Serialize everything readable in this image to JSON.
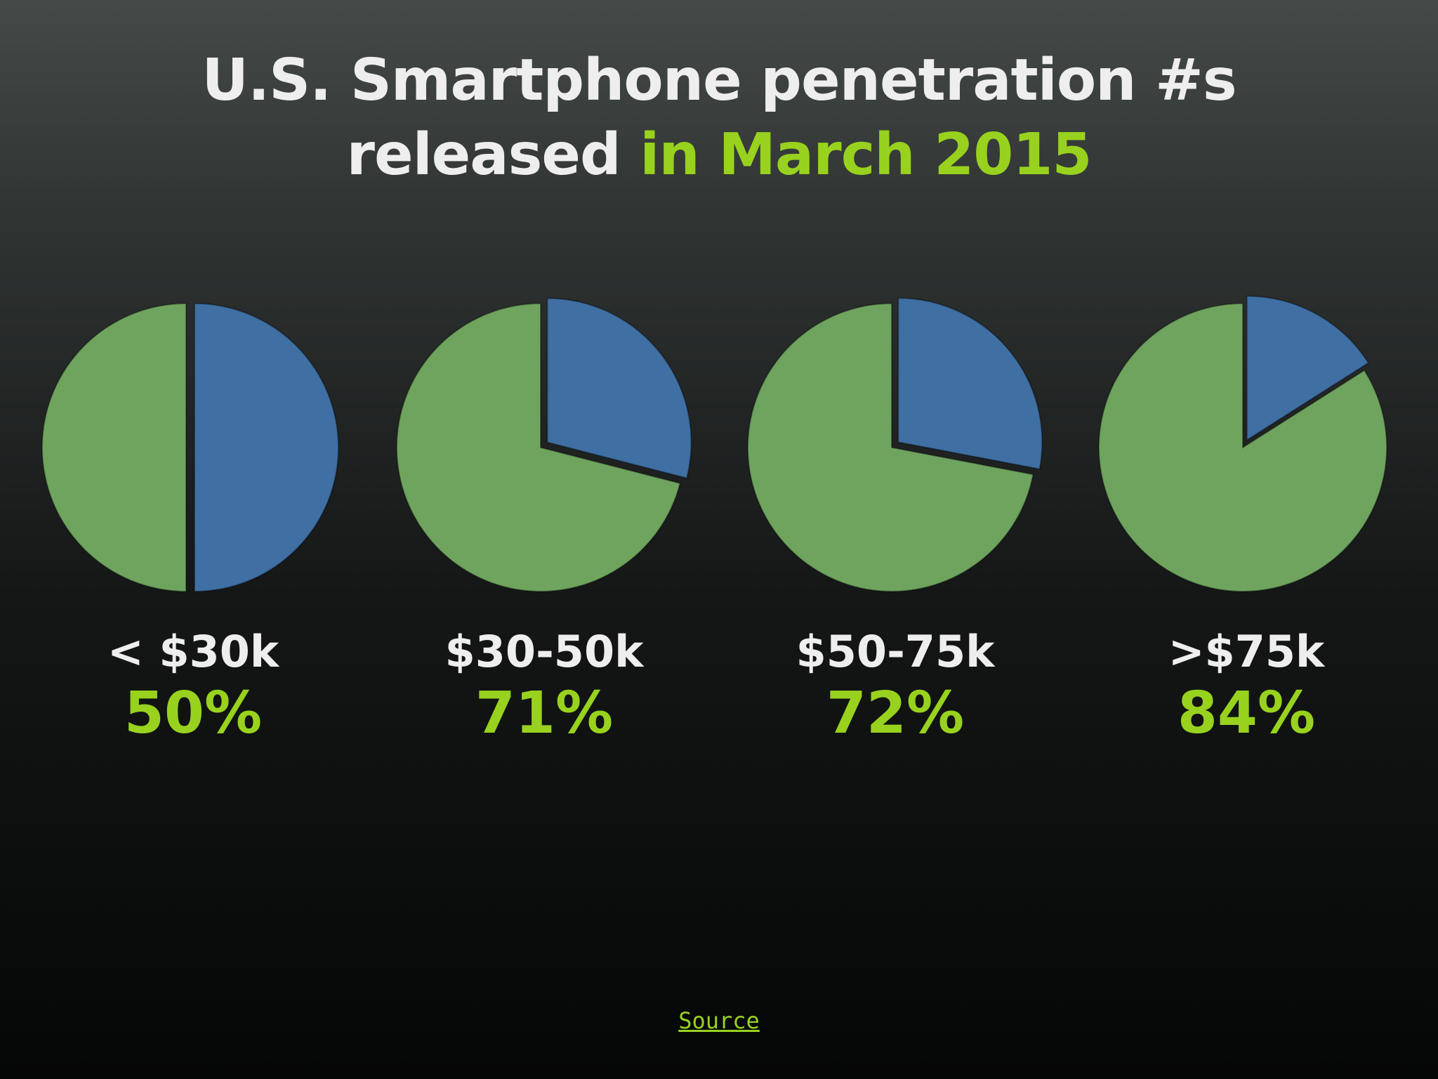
{
  "title": {
    "line1": "U.S. Smartphone penetration #s",
    "line2_prefix": "released ",
    "line2_accent": "in March 2015"
  },
  "source_link": "Source",
  "colors": {
    "smartphone": "#6fa45f",
    "non_smartphone": "#3f6fa3",
    "accent": "#98d21e",
    "text": "#eeeeee"
  },
  "chart_data": [
    {
      "type": "pie",
      "category": "< $30k",
      "value_label": "50%",
      "values": [
        50,
        50
      ]
    },
    {
      "type": "pie",
      "category": "$30-50k",
      "value_label": "71%",
      "values": [
        71,
        29
      ]
    },
    {
      "type": "pie",
      "category": "$50-75k",
      "value_label": "72%",
      "values": [
        72,
        28
      ]
    },
    {
      "type": "pie",
      "category": ">$75k",
      "value_label": "84%",
      "values": [
        84,
        16
      ]
    }
  ]
}
